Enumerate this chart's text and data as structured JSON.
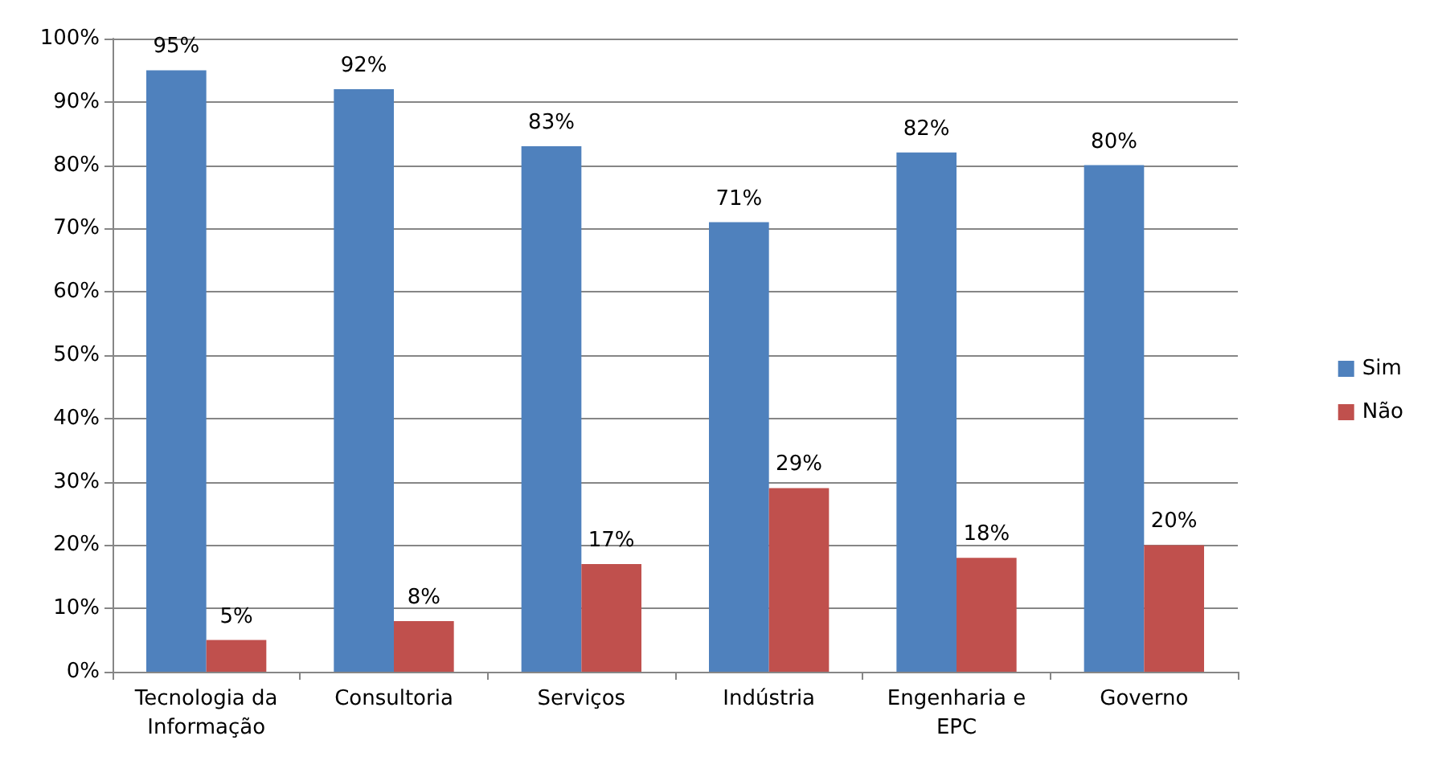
{
  "chart_data": {
    "type": "bar",
    "categories": [
      "Tecnologia da\nInformação",
      "Consultoria",
      "Serviços",
      "Indústria",
      "Engenharia e\nEPC",
      "Governo"
    ],
    "series": [
      {
        "name": "Sim",
        "color": "#4f81bd",
        "values": [
          95,
          92,
          83,
          71,
          82,
          80
        ],
        "value_labels": [
          "95%",
          "92%",
          "83%",
          "71%",
          "82%",
          "80%"
        ]
      },
      {
        "name": "Não",
        "color": "#c0504d",
        "values": [
          5,
          8,
          17,
          29,
          18,
          20
        ],
        "value_labels": [
          "5%",
          "8%",
          "17%",
          "29%",
          "18%",
          "20%"
        ]
      }
    ],
    "ylim": [
      0,
      100
    ],
    "yticks": [
      {
        "value": 0,
        "label": "0%"
      },
      {
        "value": 10,
        "label": "10%"
      },
      {
        "value": 20,
        "label": "20%"
      },
      {
        "value": 30,
        "label": "30%"
      },
      {
        "value": 40,
        "label": "40%"
      },
      {
        "value": 50,
        "label": "50%"
      },
      {
        "value": 60,
        "label": "60%"
      },
      {
        "value": 70,
        "label": "70%"
      },
      {
        "value": 80,
        "label": "80%"
      },
      {
        "value": 90,
        "label": "90%"
      },
      {
        "value": 100,
        "label": "100%"
      }
    ],
    "grid": "y",
    "legend": "right"
  }
}
